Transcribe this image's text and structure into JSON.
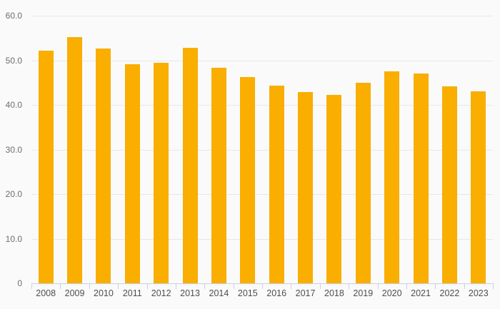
{
  "chart_data": {
    "type": "bar",
    "title": "",
    "xlabel": "",
    "ylabel": "",
    "categories": [
      "2008",
      "2009",
      "2010",
      "2011",
      "2012",
      "2013",
      "2014",
      "2015",
      "2016",
      "2017",
      "2018",
      "2019",
      "2020",
      "2021",
      "2022",
      "2023"
    ],
    "values": [
      52.1,
      55.2,
      52.6,
      49.1,
      49.4,
      52.8,
      48.4,
      46.2,
      44.4,
      42.9,
      42.2,
      44.9,
      47.5,
      47.1,
      44.1,
      43.1
    ],
    "ylim": [
      0,
      60
    ],
    "yticks": [
      {
        "value": 0,
        "label": "0"
      },
      {
        "value": 10,
        "label": "10.0"
      },
      {
        "value": 20,
        "label": "20.0"
      },
      {
        "value": 30,
        "label": "30.0"
      },
      {
        "value": 40,
        "label": "40.0"
      },
      {
        "value": 50,
        "label": "50.0"
      },
      {
        "value": 60,
        "label": "60.0"
      }
    ],
    "grid": true,
    "legend": false,
    "colors": {
      "bar": "#F9AE00",
      "background": "#FAFAFA",
      "gridline": "#E8E8E8",
      "axis_line": "#C9D2E3",
      "y_tick_label": "#6E6E6E",
      "x_tick_label": "#4E4E4E"
    }
  }
}
